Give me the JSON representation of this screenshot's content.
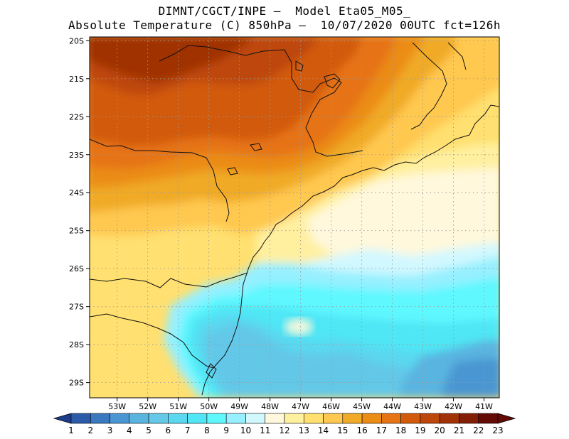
{
  "header": {
    "line1": "DIMNT/CGCT/INPE –  Model Eta05_M05_",
    "line2": "Absolute Temperature (C) 850hPa –  10/07/2020 00UTC fct=126h"
  },
  "map": {
    "lat_labels": [
      "20S",
      "21S",
      "22S",
      "23S",
      "24S",
      "25S",
      "26S",
      "27S",
      "28S",
      "29S"
    ],
    "lon_labels": [
      "53W",
      "52W",
      "51W",
      "50W",
      "49W",
      "48W",
      "47W",
      "46W",
      "45W",
      "44W",
      "43W",
      "42W",
      "41W"
    ],
    "lat_range": [
      -29.4,
      -19.9
    ],
    "lon_range": [
      -53.9,
      -40.5
    ]
  },
  "colorbar": {
    "labels": [
      "1",
      "2",
      "3",
      "4",
      "5",
      "6",
      "7",
      "8",
      "9",
      "10",
      "11",
      "12",
      "13",
      "14",
      "15",
      "16",
      "17",
      "18",
      "19",
      "20",
      "21",
      "22",
      "23"
    ],
    "colors": [
      "#1e3c8c",
      "#2a5aa8",
      "#3a78c0",
      "#4a96d2",
      "#5ab4e0",
      "#64c8e8",
      "#5ad8f0",
      "#50e6f5",
      "#5ff8ff",
      "#96f0ff",
      "#d2f8ff",
      "#fff8dc",
      "#fff0a0",
      "#ffe070",
      "#ffc850",
      "#f0aa28",
      "#eb8c14",
      "#e67314",
      "#d25a0a",
      "#bd460a",
      "#a03205",
      "#821e05",
      "#640a05"
    ]
  },
  "fields": {
    "colors": {
      "T10": "#d2f8ff",
      "T11": "#fff8dc",
      "T12": "#fff0a0",
      "T13": "#ffe070",
      "T14": "#ffc850",
      "T15": "#f0aa28",
      "T16": "#eb8c14",
      "T17": "#e67314",
      "T18": "#d25a0a",
      "T19": "#bd460a",
      "T20": "#a03205",
      "C9": "#96f0ff",
      "C8": "#5ff8ff",
      "C7": "#50e6f5",
      "C6": "#5ad8f0",
      "C5": "#64c8e8",
      "C4": "#5ab4e0",
      "C3": "#4a96d2"
    }
  }
}
